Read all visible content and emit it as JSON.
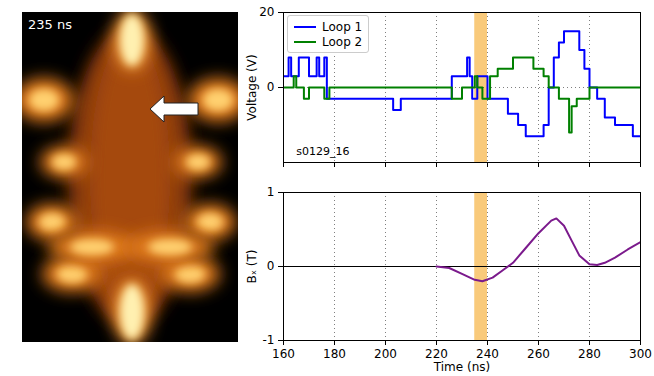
{
  "panel": {
    "label": "235 ns"
  },
  "chart_data": [
    {
      "type": "line",
      "line_style": "steps",
      "grid": true,
      "legend": "upper left",
      "tick_labels": "y",
      "ylabel": "Voltage (V)",
      "xlim": [
        160,
        300
      ],
      "xticks": [
        160,
        180,
        200,
        220,
        240,
        260,
        280,
        300
      ],
      "ylim": [
        -20,
        20
      ],
      "yticks": [
        0,
        20
      ],
      "highlight": [
        235,
        240
      ],
      "annotations": [
        {
          "text": "s0129_16",
          "x": 165,
          "y": -17
        }
      ],
      "series": [
        {
          "name": "Loop 1",
          "color": "#0000ff",
          "x": [
            160,
            162,
            163,
            165,
            166,
            170,
            173,
            174,
            176,
            177,
            182,
            186,
            203,
            206,
            226,
            232,
            233,
            234,
            236,
            240,
            245,
            248,
            252,
            255,
            262,
            264,
            266,
            268,
            270,
            274,
            276,
            278,
            280,
            283,
            286,
            290,
            297,
            300
          ],
          "values": [
            3,
            8,
            3,
            3,
            8,
            3,
            8,
            3,
            8,
            -3,
            -3,
            -3,
            -6,
            -3,
            3,
            8,
            3,
            -3,
            3,
            -3,
            -3,
            -7,
            -10,
            -13,
            -10,
            0,
            8,
            12,
            15,
            15,
            10,
            5,
            0,
            -3,
            -8,
            -10,
            -13,
            -13
          ]
        },
        {
          "name": "Loop 2",
          "color": "#008000",
          "x": [
            160,
            164,
            165,
            168,
            170,
            176,
            178,
            196,
            222,
            226,
            230,
            235,
            236,
            238,
            241,
            244,
            250,
            253,
            258,
            262,
            264,
            268,
            272,
            273,
            275,
            277,
            280,
            300
          ],
          "values": [
            0,
            3,
            0,
            -3,
            0,
            -3,
            0,
            0,
            0,
            -3,
            0,
            3,
            0,
            -3,
            3,
            5,
            8,
            8,
            5,
            3,
            0,
            -3,
            -12,
            -5,
            -3,
            -3,
            0,
            0
          ]
        }
      ]
    },
    {
      "type": "line",
      "grid": true,
      "xlabel": "Time (ns)",
      "ylabel": "Bₓ (T)",
      "xlim": [
        160,
        300
      ],
      "xticks": [
        160,
        180,
        200,
        220,
        240,
        260,
        280,
        300
      ],
      "ylim": [
        -1,
        1
      ],
      "yticks": [
        -1,
        0,
        1
      ],
      "highlight": [
        235,
        240
      ],
      "reference_line": 0,
      "series": [
        {
          "color": "#7b1a8c",
          "x": [
            220,
            225,
            230,
            235,
            238,
            242,
            246,
            250,
            255,
            260,
            265,
            267,
            270,
            273,
            276,
            280,
            283,
            286,
            290,
            295,
            300
          ],
          "values": [
            0,
            -0.02,
            -0.1,
            -0.18,
            -0.2,
            -0.15,
            -0.05,
            0.05,
            0.25,
            0.45,
            0.62,
            0.65,
            0.55,
            0.35,
            0.15,
            0.03,
            0.02,
            0.05,
            0.12,
            0.23,
            0.33
          ]
        }
      ]
    }
  ]
}
